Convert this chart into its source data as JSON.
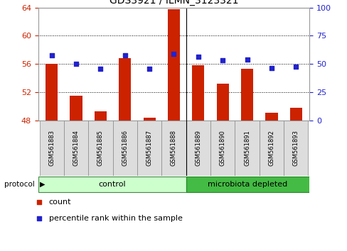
{
  "title": "GDS3921 / ILMN_3123321",
  "samples": [
    "GSM561883",
    "GSM561884",
    "GSM561885",
    "GSM561886",
    "GSM561887",
    "GSM561888",
    "GSM561889",
    "GSM561890",
    "GSM561891",
    "GSM561892",
    "GSM561893"
  ],
  "counts": [
    56.0,
    51.5,
    49.3,
    56.8,
    48.4,
    63.8,
    55.8,
    53.2,
    55.3,
    49.1,
    49.8
  ],
  "percentile_ranks": [
    57.5,
    50.0,
    46.0,
    57.5,
    45.5,
    59.0,
    56.5,
    53.0,
    54.0,
    46.5,
    47.5
  ],
  "left_ylim": [
    48,
    64
  ],
  "left_yticks": [
    48,
    52,
    56,
    60,
    64
  ],
  "right_ylim": [
    0,
    100
  ],
  "right_yticks": [
    0,
    25,
    50,
    75,
    100
  ],
  "bar_color": "#CC2200",
  "dot_color": "#2222CC",
  "bar_bottom": 48,
  "title_fontsize": 10,
  "tick_fontsize": 8,
  "left_tick_color": "#CC2200",
  "right_tick_color": "#2222CC",
  "bar_width": 0.5,
  "legend_count_label": "count",
  "legend_pct_label": "percentile rank within the sample",
  "control_color": "#CCFFCC",
  "microbiota_color": "#44BB44",
  "control_label": "control",
  "microbiota_label": "microbiota depleted",
  "protocol_label": "protocol",
  "grid_yticks": [
    52,
    56,
    60
  ],
  "separator_after": 5
}
